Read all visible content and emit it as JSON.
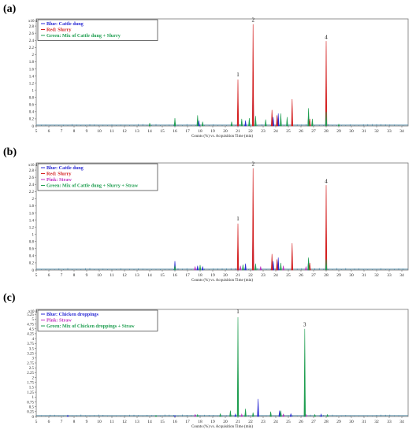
{
  "chart_data": [
    {
      "type": "line",
      "panel_label": "(a)",
      "y_multiplier": "x10 4",
      "xlabel": "Counts (%) vs. Acquisition Time (min)",
      "xlim": [
        5,
        34.5
      ],
      "ylim": [
        0,
        3.0
      ],
      "x_ticks": [
        "5",
        "6",
        "7",
        "8",
        "9",
        "10",
        "11",
        "12",
        "13",
        "14",
        "15",
        "16",
        "17",
        "18",
        "19",
        "20",
        "21",
        "22",
        "23",
        "24",
        "25",
        "26",
        "27",
        "28",
        "29",
        "30",
        "31",
        "32",
        "33",
        "34"
      ],
      "y_ticks": [
        "0",
        "0.2",
        "0.4",
        "0.6",
        "0.8",
        "1",
        "1.2",
        "1.4",
        "1.6",
        "1.8",
        "2",
        "2.2",
        "2.4",
        "2.6",
        "2.8"
      ],
      "grid": false,
      "legend_position": "top-left",
      "legend": [
        {
          "label": "Blue: Cattle dung",
          "color": "#2b2bd4"
        },
        {
          "label": "Red: Slurry",
          "color": "#d42020"
        },
        {
          "label": "Green: Mix of Cattle dung + Slurry",
          "color": "#1f9e50"
        }
      ],
      "peak_labels": [
        {
          "text": "1",
          "x": 21.0,
          "y": 1.37
        },
        {
          "text": "2",
          "x": 22.2,
          "y": 2.9
        },
        {
          "text": "4",
          "x": 28.0,
          "y": 2.42
        }
      ],
      "series": [
        {
          "color": "#2b2bd4",
          "peaks": [
            [
              16.0,
              0.1
            ],
            [
              17.9,
              0.15
            ],
            [
              21.0,
              0.2
            ],
            [
              21.6,
              0.15
            ],
            [
              22.2,
              1.5
            ],
            [
              23.8,
              0.25
            ],
            [
              24.2,
              0.35
            ],
            [
              26.6,
              0.3
            ],
            [
              28.0,
              0.5
            ]
          ]
        },
        {
          "color": "#d42020",
          "peaks": [
            [
              21.0,
              1.3
            ],
            [
              22.2,
              2.85
            ],
            [
              23.7,
              0.45
            ],
            [
              24.1,
              0.3
            ],
            [
              25.3,
              0.75
            ],
            [
              26.7,
              0.2
            ],
            [
              28.0,
              2.38
            ]
          ]
        },
        {
          "color": "#1f9e50",
          "peaks": [
            [
              14.0,
              0.08
            ],
            [
              16.0,
              0.22
            ],
            [
              17.8,
              0.3
            ],
            [
              18.2,
              0.12
            ],
            [
              20.5,
              0.12
            ],
            [
              21.3,
              0.2
            ],
            [
              21.9,
              0.22
            ],
            [
              22.4,
              0.28
            ],
            [
              23.2,
              0.18
            ],
            [
              24.4,
              0.35
            ],
            [
              24.9,
              0.25
            ],
            [
              26.6,
              0.5
            ],
            [
              26.9,
              0.2
            ],
            [
              28.0,
              0.4
            ],
            [
              29.0,
              0.05
            ]
          ]
        }
      ]
    },
    {
      "type": "line",
      "panel_label": "(b)",
      "y_multiplier": "x10 4",
      "xlabel": "Counts (%) vs. Acquisition Time (min)",
      "xlim": [
        5,
        34.5
      ],
      "ylim": [
        0,
        3.0
      ],
      "x_ticks": [
        "5",
        "6",
        "7",
        "8",
        "9",
        "10",
        "11",
        "12",
        "13",
        "14",
        "15",
        "16",
        "17",
        "18",
        "19",
        "20",
        "21",
        "22",
        "23",
        "24",
        "25",
        "26",
        "27",
        "28",
        "29",
        "30",
        "31",
        "32",
        "33",
        "34"
      ],
      "y_ticks": [
        "0",
        "0.2",
        "0.4",
        "0.6",
        "0.8",
        "1",
        "1.2",
        "1.4",
        "1.6",
        "1.8",
        "2",
        "2.2",
        "2.4",
        "2.6",
        "2.8"
      ],
      "grid": false,
      "legend_position": "top-left",
      "legend": [
        {
          "label": "Blue: Cattle dung",
          "color": "#2b2bd4"
        },
        {
          "label": "Red: Slurry",
          "color": "#d42020"
        },
        {
          "label": "Pink: Straw",
          "color": "#c030c0"
        },
        {
          "label": "Green: Mix of Cattle dung + Slurry + Straw",
          "color": "#1f9e50"
        }
      ],
      "peak_labels": [
        {
          "text": "1",
          "x": 21.0,
          "y": 1.37
        },
        {
          "text": "2",
          "x": 22.2,
          "y": 2.9
        },
        {
          "text": "4",
          "x": 28.0,
          "y": 2.42
        }
      ],
      "series": [
        {
          "color": "#2b2bd4",
          "peaks": [
            [
              16.0,
              0.25
            ],
            [
              17.8,
              0.12
            ],
            [
              18.2,
              0.1
            ],
            [
              21.0,
              0.2
            ],
            [
              21.6,
              0.18
            ],
            [
              22.2,
              1.5
            ],
            [
              23.8,
              0.25
            ],
            [
              24.2,
              0.35
            ],
            [
              26.6,
              0.3
            ],
            [
              28.0,
              0.5
            ]
          ]
        },
        {
          "color": "#d42020",
          "peaks": [
            [
              21.0,
              1.3
            ],
            [
              22.2,
              2.85
            ],
            [
              23.7,
              0.45
            ],
            [
              24.1,
              0.3
            ],
            [
              25.3,
              0.75
            ],
            [
              26.7,
              0.2
            ],
            [
              28.0,
              2.38
            ]
          ]
        },
        {
          "color": "#c030c0",
          "peaks": [
            [
              17.6,
              0.1
            ],
            [
              21.2,
              0.12
            ],
            [
              22.8,
              0.1
            ],
            [
              24.6,
              0.12
            ],
            [
              26.4,
              0.1
            ]
          ]
        },
        {
          "color": "#1f9e50",
          "peaks": [
            [
              16.0,
              0.12
            ],
            [
              18.0,
              0.14
            ],
            [
              21.4,
              0.15
            ],
            [
              22.4,
              0.18
            ],
            [
              24.4,
              0.2
            ],
            [
              26.6,
              0.35
            ],
            [
              28.0,
              0.3
            ]
          ]
        }
      ]
    },
    {
      "type": "line",
      "panel_label": "(c)",
      "y_multiplier": "x10 4",
      "xlabel": "Counts (%) vs. Acquisition Time (min)",
      "xlim": [
        5,
        34.5
      ],
      "ylim": [
        0,
        5.5
      ],
      "x_ticks": [
        "5",
        "6",
        "7",
        "8",
        "9",
        "10",
        "11",
        "12",
        "13",
        "14",
        "15",
        "16",
        "17",
        "18",
        "19",
        "20",
        "21",
        "22",
        "23",
        "24",
        "25",
        "26",
        "27",
        "28",
        "29",
        "30",
        "31",
        "32",
        "33",
        "34"
      ],
      "y_ticks": [
        "0",
        "0.25",
        "0.5",
        "0.75",
        "1",
        "1.25",
        "1.5",
        "1.75",
        "2",
        "2.25",
        "2.5",
        "2.75",
        "3",
        "3.25",
        "3.5",
        "3.75",
        "4",
        "4.25",
        "4.5",
        "4.75",
        "5",
        "5.25"
      ],
      "grid": false,
      "legend_position": "top-left",
      "legend": [
        {
          "label": "Blue: Chicken droppings",
          "color": "#2b2bd4"
        },
        {
          "label": "Pink: Straw",
          "color": "#c030c0"
        },
        {
          "label": "Green: Mix of Chicken droppings + Straw",
          "color": "#1f9e50"
        }
      ],
      "peak_labels": [
        {
          "text": "1",
          "x": 21.0,
          "y": 5.25
        },
        {
          "text": "3",
          "x": 26.3,
          "y": 4.6
        }
      ],
      "series": [
        {
          "color": "#2b2bd4",
          "peaks": [
            [
              7.5,
              0.06
            ],
            [
              16.0,
              0.05
            ],
            [
              20.8,
              0.12
            ],
            [
              22.6,
              0.9
            ],
            [
              24.3,
              0.3
            ],
            [
              25.2,
              0.15
            ],
            [
              26.3,
              0.2
            ],
            [
              27.6,
              0.12
            ]
          ]
        },
        {
          "color": "#c030c0",
          "peaks": [
            [
              17.6,
              0.1
            ],
            [
              21.3,
              0.12
            ],
            [
              24.6,
              0.12
            ],
            [
              26.4,
              0.1
            ]
          ]
        },
        {
          "color": "#1f9e50",
          "peaks": [
            [
              14.5,
              0.06
            ],
            [
              17.8,
              0.1
            ],
            [
              19.6,
              0.15
            ],
            [
              20.4,
              0.3
            ],
            [
              21.0,
              5.1
            ],
            [
              21.6,
              0.4
            ],
            [
              22.2,
              0.2
            ],
            [
              23.6,
              0.25
            ],
            [
              24.4,
              0.3
            ],
            [
              26.3,
              4.5
            ],
            [
              27.1,
              0.1
            ],
            [
              28.1,
              0.1
            ]
          ]
        }
      ]
    }
  ]
}
